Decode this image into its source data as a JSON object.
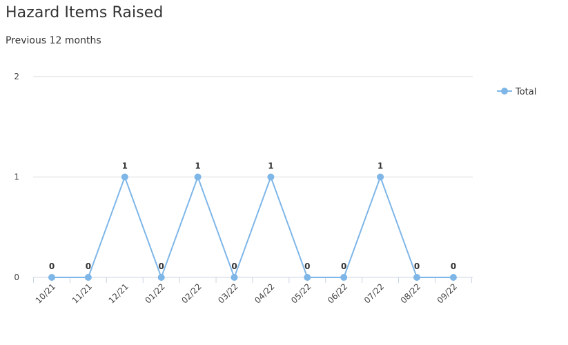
{
  "title": "Hazard Items Raised",
  "subtitle": "Previous 12 months",
  "colors": {
    "series": "#7eb6e8",
    "grid": "#d9d9d9",
    "axis": "#c8d4e0"
  },
  "chart_data": {
    "type": "line",
    "title": "Hazard Items Raised",
    "subtitle": "Previous 12 months",
    "categories": [
      "10/21",
      "11/21",
      "12/21",
      "01/22",
      "02/22",
      "03/22",
      "04/22",
      "05/22",
      "06/22",
      "07/22",
      "08/22",
      "09/22"
    ],
    "series": [
      {
        "name": "Total",
        "values": [
          0,
          0,
          1,
          0,
          1,
          0,
          1,
          0,
          0,
          1,
          0,
          0
        ],
        "color": "#7eb6e8"
      }
    ],
    "ylim": [
      0,
      2
    ],
    "yticks": [
      0,
      1,
      2
    ],
    "grid": true,
    "legend": "right",
    "data_labels": true
  }
}
